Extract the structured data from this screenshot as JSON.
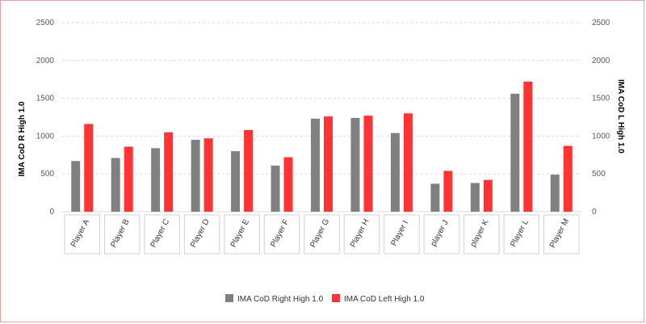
{
  "chart_data": {
    "type": "bar",
    "categories": [
      "Player A",
      "Player B",
      "Player C",
      "Player D",
      "Player E",
      "Player F",
      "Player G",
      "Player H",
      "Player I",
      "player J",
      "player K",
      "Player L",
      "Player M"
    ],
    "series": [
      {
        "name": "IMA CoD Right High 1.0",
        "color": "#808080",
        "axis": "left",
        "values": [
          670,
          710,
          840,
          950,
          800,
          610,
          1230,
          1240,
          1040,
          370,
          380,
          1560,
          490
        ]
      },
      {
        "name": "IMA CoD Left High 1.0",
        "color": "#ff3333",
        "axis": "right",
        "values": [
          1160,
          860,
          1050,
          970,
          1080,
          720,
          1260,
          1270,
          1300,
          540,
          420,
          1720,
          870
        ]
      }
    ],
    "ylabel": "IMA CoD R High 1.0",
    "y2label": "IMA CoD L High 1.0",
    "ylim": [
      0,
      2500
    ],
    "y2lim": [
      0,
      2500
    ],
    "yticks": [
      0,
      500,
      1000,
      1500,
      2000,
      2500
    ],
    "grid": true,
    "legend_position": "bottom-center"
  }
}
